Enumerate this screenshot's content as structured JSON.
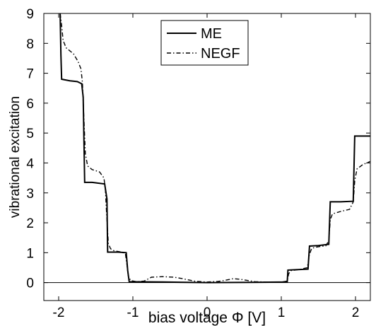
{
  "chart_data": {
    "type": "line",
    "xlabel": "bias voltage Φ [V]",
    "ylabel": "vibrational excitation",
    "xlim": [
      -2.2,
      2.2
    ],
    "ylim": [
      -0.6,
      9
    ],
    "x_ticks": [
      -2,
      -1,
      0,
      1,
      2
    ],
    "x_tick_labels": [
      "-2",
      "-1",
      "0",
      "1",
      "2"
    ],
    "y_ticks": [
      0,
      1,
      2,
      3,
      4,
      5,
      6,
      7,
      8,
      9
    ],
    "y_tick_labels": [
      "0",
      "1",
      "2",
      "3",
      "4",
      "5",
      "6",
      "7",
      "8",
      "9"
    ],
    "grid": false,
    "legend": "top-center",
    "zero_line": 0,
    "series": [
      {
        "name": "ME",
        "style": "solid",
        "color": "#000000",
        "points": [
          [
            -1.98,
            9.0
          ],
          [
            -1.97,
            7.6
          ],
          [
            -1.96,
            6.8
          ],
          [
            -1.85,
            6.75
          ],
          [
            -1.75,
            6.72
          ],
          [
            -1.69,
            6.65
          ],
          [
            -1.67,
            6.2
          ],
          [
            -1.65,
            3.35
          ],
          [
            -1.55,
            3.35
          ],
          [
            -1.38,
            3.3
          ],
          [
            -1.35,
            2.8
          ],
          [
            -1.34,
            1.02
          ],
          [
            -1.2,
            1.02
          ],
          [
            -1.09,
            1.0
          ],
          [
            -1.07,
            0.4
          ],
          [
            -1.05,
            0.03
          ],
          [
            -0.6,
            0.02
          ],
          [
            0,
            0.0
          ],
          [
            0.6,
            0.01
          ],
          [
            1.08,
            0.02
          ],
          [
            1.09,
            0.42
          ],
          [
            1.2,
            0.43
          ],
          [
            1.36,
            0.45
          ],
          [
            1.38,
            1.22
          ],
          [
            1.5,
            1.24
          ],
          [
            1.64,
            1.28
          ],
          [
            1.66,
            2.7
          ],
          [
            1.8,
            2.7
          ],
          [
            1.97,
            2.72
          ],
          [
            1.99,
            4.9
          ],
          [
            2.2,
            4.9
          ]
        ]
      },
      {
        "name": "NEGF",
        "style": "dashdot",
        "color": "#000000",
        "points": [
          [
            -1.98,
            9.0
          ],
          [
            -1.96,
            8.6
          ],
          [
            -1.94,
            8.1
          ],
          [
            -1.9,
            7.85
          ],
          [
            -1.8,
            7.65
          ],
          [
            -1.74,
            7.4
          ],
          [
            -1.7,
            7.15
          ],
          [
            -1.68,
            6.7
          ],
          [
            -1.66,
            5.5
          ],
          [
            -1.64,
            4.3
          ],
          [
            -1.61,
            3.9
          ],
          [
            -1.55,
            3.78
          ],
          [
            -1.45,
            3.7
          ],
          [
            -1.39,
            3.5
          ],
          [
            -1.37,
            3.1
          ],
          [
            -1.35,
            2.1
          ],
          [
            -1.33,
            1.3
          ],
          [
            -1.3,
            1.13
          ],
          [
            -1.25,
            1.06
          ],
          [
            -1.15,
            1.02
          ],
          [
            -1.1,
            0.95
          ],
          [
            -1.08,
            0.6
          ],
          [
            -1.06,
            0.2
          ],
          [
            -1.03,
            0.07
          ],
          [
            -0.95,
            0.03
          ],
          [
            -0.85,
            0.05
          ],
          [
            -0.75,
            0.18
          ],
          [
            -0.6,
            0.2
          ],
          [
            -0.45,
            0.18
          ],
          [
            -0.35,
            0.14
          ],
          [
            -0.25,
            0.09
          ],
          [
            -0.15,
            0.04
          ],
          [
            0,
            0.02
          ],
          [
            0.15,
            0.04
          ],
          [
            0.25,
            0.08
          ],
          [
            0.35,
            0.13
          ],
          [
            0.45,
            0.11
          ],
          [
            0.55,
            0.07
          ],
          [
            0.65,
            0.03
          ],
          [
            0.8,
            0.02
          ],
          [
            1.0,
            0.02
          ],
          [
            1.08,
            0.05
          ],
          [
            1.1,
            0.3
          ],
          [
            1.13,
            0.4
          ],
          [
            1.25,
            0.44
          ],
          [
            1.35,
            0.5
          ],
          [
            1.38,
            0.95
          ],
          [
            1.41,
            1.15
          ],
          [
            1.5,
            1.2
          ],
          [
            1.6,
            1.23
          ],
          [
            1.64,
            1.4
          ],
          [
            1.66,
            2.1
          ],
          [
            1.69,
            2.3
          ],
          [
            1.8,
            2.38
          ],
          [
            1.92,
            2.45
          ],
          [
            1.97,
            2.7
          ],
          [
            1.99,
            3.4
          ],
          [
            2.02,
            3.8
          ],
          [
            2.1,
            3.95
          ],
          [
            2.2,
            4.05
          ]
        ]
      }
    ]
  }
}
